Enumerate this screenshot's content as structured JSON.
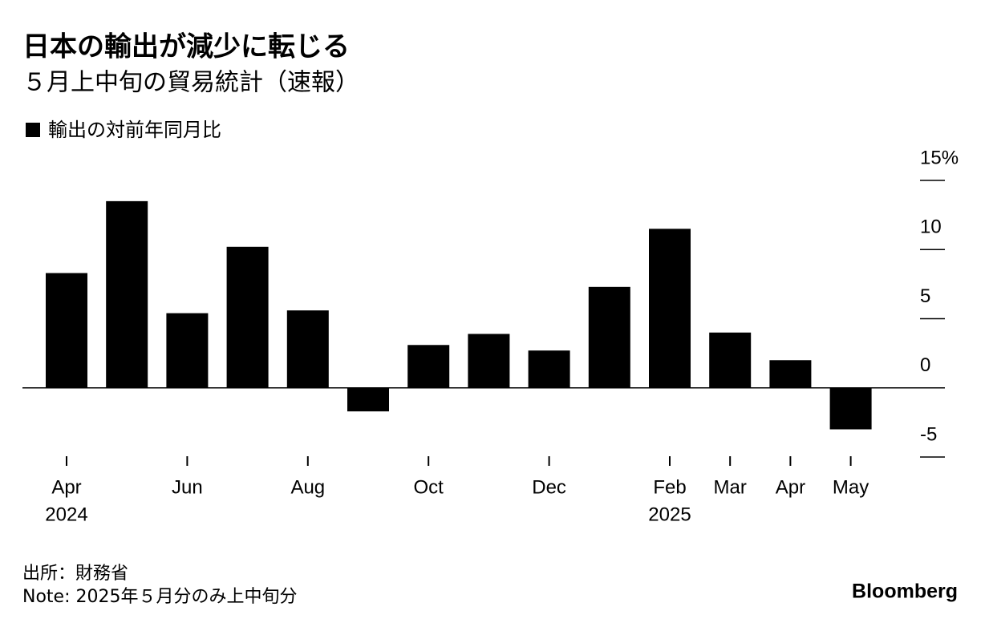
{
  "chart_data": {
    "type": "bar",
    "title": "日本の輸出が減少に転じる",
    "subtitle": "５月上中旬の貿易統計（速報）",
    "categories": [
      "Apr",
      null,
      "Jun",
      null,
      "Aug",
      null,
      "Oct",
      null,
      "Dec",
      null,
      "Feb",
      "Mar",
      "Apr",
      "May"
    ],
    "category_years": [
      "2024",
      null,
      null,
      null,
      null,
      null,
      null,
      null,
      null,
      null,
      "2025",
      null,
      null,
      null
    ],
    "series": [
      {
        "name": "輸出の対前年同月比",
        "color": "#000000",
        "values": [
          8.3,
          13.5,
          5.4,
          10.2,
          5.6,
          -1.7,
          3.1,
          3.9,
          2.7,
          7.3,
          11.5,
          4.0,
          2.0,
          -3.0
        ]
      }
    ],
    "ylim": [
      -5,
      15
    ],
    "yticks": [
      -5,
      0,
      5,
      10,
      {
        "value": 15,
        "label": "15%"
      }
    ],
    "source": "出所：財務省",
    "note": "Note: 2025年５月分のみ上中旬分",
    "brand": "Bloomberg"
  }
}
